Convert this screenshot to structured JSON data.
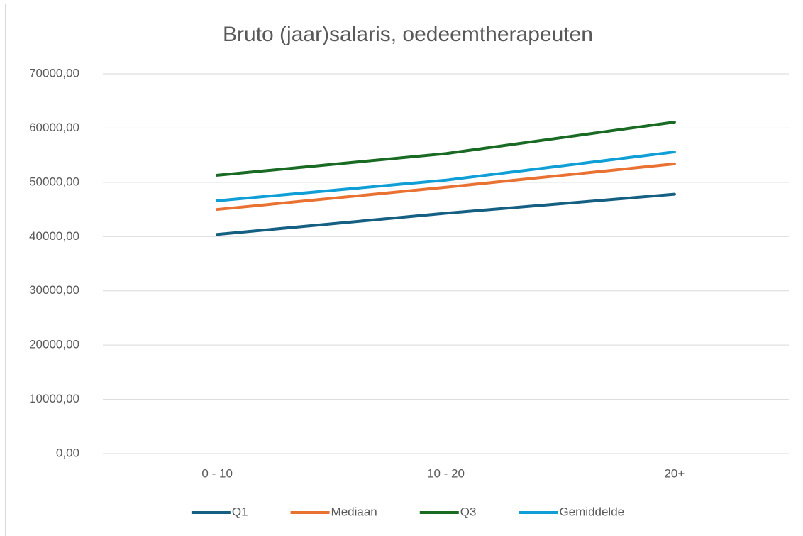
{
  "chart_data": {
    "type": "line",
    "title": "Bruto (jaar)salaris, oedeemtherapeuten",
    "categories": [
      "0 - 10",
      "10 - 20",
      "20+"
    ],
    "series": [
      {
        "name": "Q1",
        "color": "#156082",
        "values": [
          40400,
          44300,
          47800
        ]
      },
      {
        "name": "Mediaan",
        "color": "#e97132",
        "values": [
          45000,
          49100,
          53400
        ]
      },
      {
        "name": "Q3",
        "color": "#196b24",
        "values": [
          51300,
          55300,
          61100
        ]
      },
      {
        "name": "Gemiddelde",
        "color": "#0f9ed5",
        "values": [
          46600,
          50400,
          55600
        ]
      }
    ],
    "ylim": [
      0,
      70000
    ],
    "yticks": [
      {
        "value": 0,
        "label": "0,00"
      },
      {
        "value": 10000,
        "label": "10000,00"
      },
      {
        "value": 20000,
        "label": "20000,00"
      },
      {
        "value": 30000,
        "label": "30000,00"
      },
      {
        "value": 40000,
        "label": "40000,00"
      },
      {
        "value": 50000,
        "label": "50000,00"
      },
      {
        "value": 60000,
        "label": "60000,00"
      },
      {
        "value": 70000,
        "label": "70000,00"
      }
    ],
    "grid": true,
    "legend": "bottom"
  }
}
